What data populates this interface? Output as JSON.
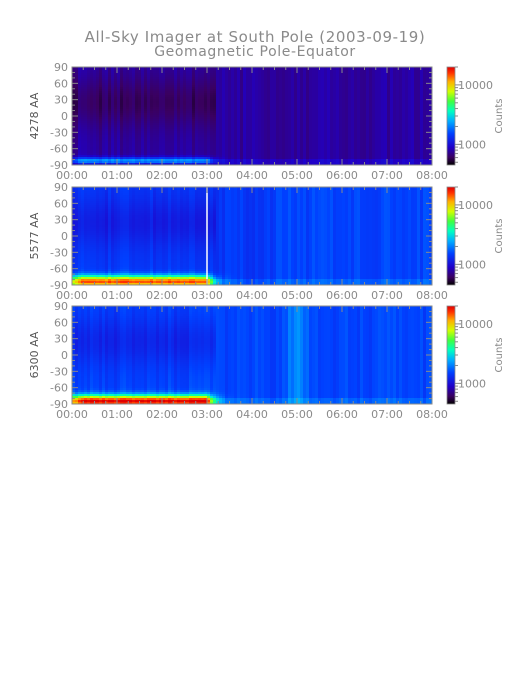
{
  "title": {
    "line1": "All-Sky Imager at South Pole (2003-09-19)",
    "line2": "Geomagnetic Pole-Equator"
  },
  "chart_data": [
    {
      "type": "heatmap",
      "ylabel": "4278 AA",
      "x_ticks": [
        "00:00",
        "01:00",
        "02:00",
        "03:00",
        "04:00",
        "05:00",
        "06:00",
        "07:00",
        "08:00"
      ],
      "xlim": [
        "00:00",
        "08:00"
      ],
      "y_ticks": [
        90,
        60,
        30,
        0,
        -30,
        -60,
        -90
      ],
      "ylim": [
        -90,
        90
      ],
      "colorbar": {
        "label": "Counts",
        "ticks": [
          10000,
          1000
        ],
        "scale": "log"
      },
      "gap_at": null,
      "aurora_band": {
        "lat_center": -82,
        "intensity_peak": 0.42,
        "end_time": "03:00"
      },
      "background_level": 0.14
    },
    {
      "type": "heatmap",
      "ylabel": "5577 AA",
      "x_ticks": [
        "00:00",
        "01:00",
        "02:00",
        "03:00",
        "04:00",
        "05:00",
        "06:00",
        "07:00",
        "08:00"
      ],
      "xlim": [
        "00:00",
        "08:00"
      ],
      "y_ticks": [
        90,
        60,
        30,
        0,
        -30,
        -60,
        -90
      ],
      "ylim": [
        -90,
        90
      ],
      "colorbar": {
        "label": "Counts",
        "ticks": [
          10000,
          1000
        ],
        "scale": "log"
      },
      "gap_at": "03:00",
      "aurora_band": {
        "lat_center": -84,
        "intensity_peak": 0.92,
        "end_time": "03:00"
      },
      "background_level": 0.3
    },
    {
      "type": "heatmap",
      "ylabel": "6300 AA",
      "x_ticks": [
        "00:00",
        "01:00",
        "02:00",
        "03:00",
        "04:00",
        "05:00",
        "06:00",
        "07:00",
        "08:00"
      ],
      "xlim": [
        "00:00",
        "08:00"
      ],
      "y_ticks": [
        90,
        60,
        30,
        0,
        -30,
        -60,
        -90
      ],
      "ylim": [
        -90,
        90
      ],
      "colorbar": {
        "label": "Counts",
        "ticks": [
          10000,
          1000
        ],
        "scale": "log"
      },
      "gap_at": null,
      "aurora_band": {
        "lat_center": -85,
        "intensity_peak": 1.0,
        "end_time": "03:00"
      },
      "background_level": 0.32
    }
  ]
}
